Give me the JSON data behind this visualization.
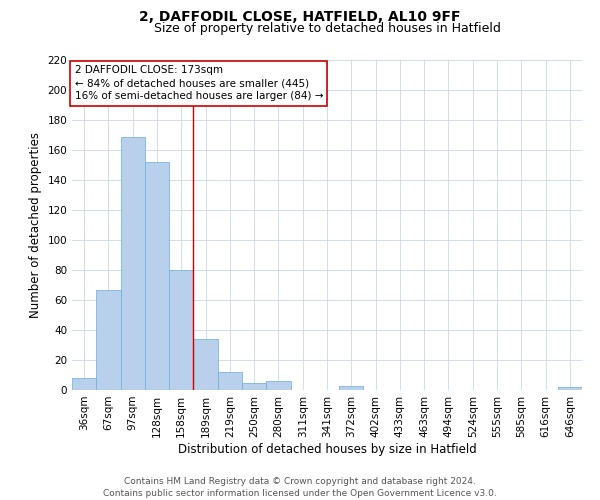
{
  "title": "2, DAFFODIL CLOSE, HATFIELD, AL10 9FF",
  "subtitle": "Size of property relative to detached houses in Hatfield",
  "xlabel": "Distribution of detached houses by size in Hatfield",
  "ylabel": "Number of detached properties",
  "bar_labels": [
    "36sqm",
    "67sqm",
    "97sqm",
    "128sqm",
    "158sqm",
    "189sqm",
    "219sqm",
    "250sqm",
    "280sqm",
    "311sqm",
    "341sqm",
    "372sqm",
    "402sqm",
    "433sqm",
    "463sqm",
    "494sqm",
    "524sqm",
    "555sqm",
    "585sqm",
    "616sqm",
    "646sqm"
  ],
  "bar_values": [
    8,
    67,
    169,
    152,
    80,
    34,
    12,
    5,
    6,
    0,
    0,
    3,
    0,
    0,
    0,
    0,
    0,
    0,
    0,
    0,
    2
  ],
  "bar_color": "#b8d0eb",
  "bar_edgecolor": "#6aaed6",
  "ylim": [
    0,
    220
  ],
  "yticks": [
    0,
    20,
    40,
    60,
    80,
    100,
    120,
    140,
    160,
    180,
    200,
    220
  ],
  "annotation_text_line1": "2 DAFFODIL CLOSE: 173sqm",
  "annotation_text_line2": "← 84% of detached houses are smaller (445)",
  "annotation_text_line3": "16% of semi-detached houses are larger (84) →",
  "annotation_box_color": "#ffffff",
  "annotation_box_edgecolor": "#cc0000",
  "vline_color": "#cc0000",
  "vline_bin": 4,
  "footer_line1": "Contains HM Land Registry data © Crown copyright and database right 2024.",
  "footer_line2": "Contains public sector information licensed under the Open Government Licence v3.0.",
  "background_color": "#ffffff",
  "grid_color": "#c8d8eb",
  "title_fontsize": 10,
  "subtitle_fontsize": 9,
  "axis_label_fontsize": 8.5,
  "tick_fontsize": 7.5,
  "annotation_fontsize": 7.5,
  "footer_fontsize": 6.5
}
